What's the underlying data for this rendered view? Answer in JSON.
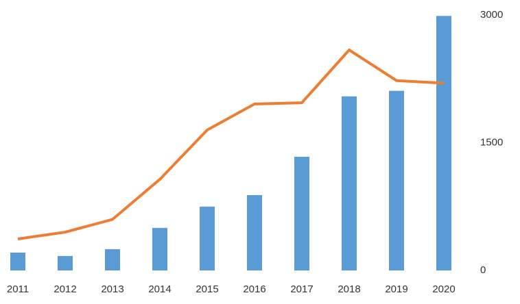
{
  "chart_data": {
    "type": "combo",
    "categories": [
      "2011",
      "2012",
      "2013",
      "2014",
      "2015",
      "2016",
      "2017",
      "2018",
      "2019",
      "2020"
    ],
    "series": [
      {
        "type": "bar",
        "color": "#5b9bd5",
        "values": [
          210,
          170,
          250,
          500,
          750,
          885,
          1335,
          2045,
          2110,
          2990
        ]
      },
      {
        "type": "line",
        "color": "#ed7d31",
        "values": [
          370,
          450,
          600,
          1070,
          1650,
          1955,
          1970,
          2590,
          2230,
          2200
        ]
      }
    ],
    "ylim": [
      0,
      3000
    ],
    "yticks": [
      0,
      1500,
      3000
    ],
    "grid": false
  }
}
